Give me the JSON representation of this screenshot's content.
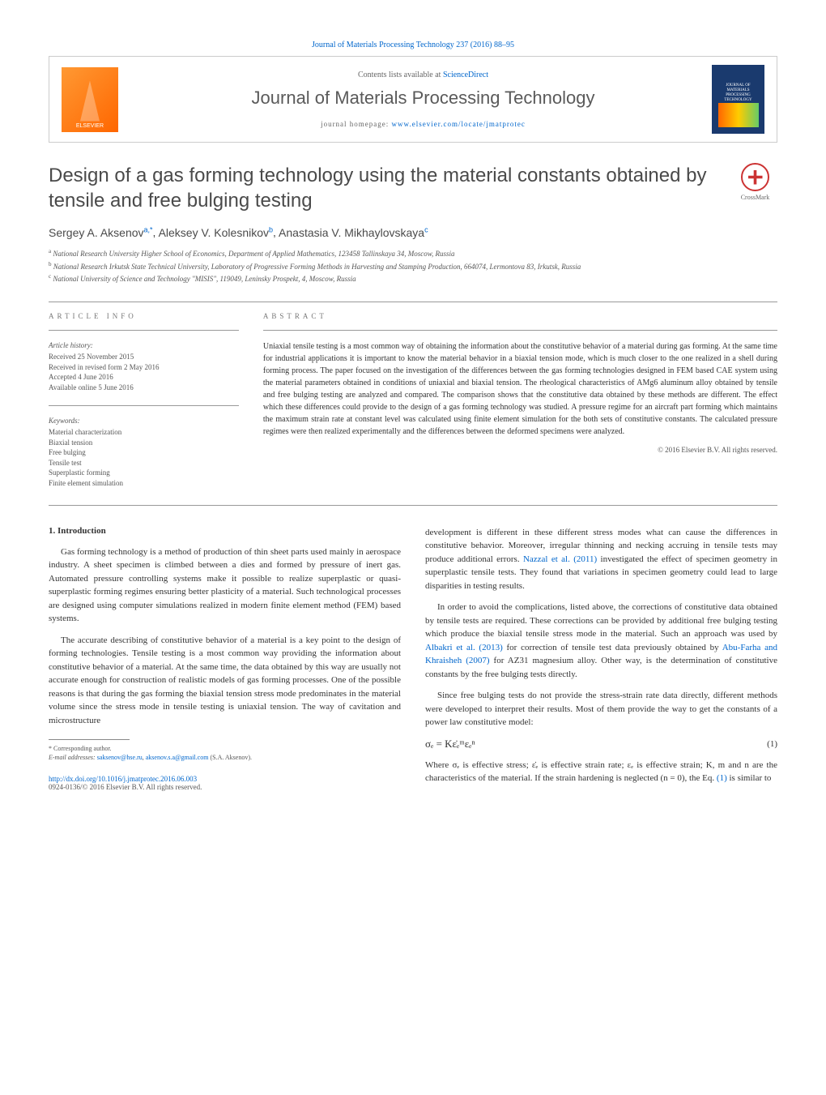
{
  "header": {
    "citation": "Journal of Materials Processing Technology 237 (2016) 88–95",
    "contents_line": "Contents lists available at ",
    "contents_link": "ScienceDirect",
    "journal_name": "Journal of Materials Processing Technology",
    "homepage_label": "journal homepage: ",
    "homepage_url": "www.elsevier.com/locate/jmatprotec",
    "publisher_logo_text": "ELSEVIER",
    "cover_label": "JOURNAL OF MATERIALS PROCESSING TECHNOLOGY"
  },
  "crossmark_label": "CrossMark",
  "title": "Design of a gas forming technology using the material constants obtained by tensile and free bulging testing",
  "authors": [
    {
      "name": "Sergey A. Aksenov",
      "marks": "a,*"
    },
    {
      "name": "Aleksey V. Kolesnikov",
      "marks": "b"
    },
    {
      "name": "Anastasia V. Mikhaylovskaya",
      "marks": "c"
    }
  ],
  "affiliations": [
    {
      "mark": "a",
      "text": "National Research University Higher School of Economics, Department of Applied Mathematics, 123458 Tallinskaya 34, Moscow, Russia"
    },
    {
      "mark": "b",
      "text": "National Research Irkutsk State Technical University, Laboratory of Progressive Forming Methods in Harvesting and Stamping Production, 664074, Lermontova 83, Irkutsk, Russia"
    },
    {
      "mark": "c",
      "text": "National University of Science and Technology \"MISIS\", 119049, Leninsky Prospekt, 4, Moscow, Russia"
    }
  ],
  "article_info": {
    "header": "ARTICLE INFO",
    "history_label": "Article history:",
    "history": [
      "Received 25 November 2015",
      "Received in revised form 2 May 2016",
      "Accepted 4 June 2016",
      "Available online 5 June 2016"
    ],
    "keywords_label": "Keywords:",
    "keywords": [
      "Material characterization",
      "Biaxial tension",
      "Free bulging",
      "Tensile test",
      "Superplastic forming",
      "Finite element simulation"
    ]
  },
  "abstract": {
    "header": "ABSTRACT",
    "text": "Uniaxial tensile testing is a most common way of obtaining the information about the constitutive behavior of a material during gas forming. At the same time for industrial applications it is important to know the material behavior in a biaxial tension mode, which is much closer to the one realized in a shell during forming process. The paper focused on the investigation of the differences between the gas forming technologies designed in FEM based CAE system using the material parameters obtained in conditions of uniaxial and biaxial tension. The rheological characteristics of AMg6 aluminum alloy obtained by tensile and free bulging testing are analyzed and compared. The comparison shows that the constitutive data obtained by these methods are different. The effect which these differences could provide to the design of a gas forming technology was studied. A pressure regime for an aircraft part forming which maintains the maximum strain rate at constant level was calculated using finite element simulation for the both sets of constitutive constants. The calculated pressure regimes were then realized experimentally and the differences between the deformed specimens were analyzed.",
    "copyright": "© 2016 Elsevier B.V. All rights reserved."
  },
  "body": {
    "section1_heading": "1. Introduction",
    "col1_p1": "Gas forming technology is a method of production of thin sheet parts used mainly in aerospace industry. A sheet specimen is climbed between a dies and formed by pressure of inert gas. Automated pressure controlling systems make it possible to realize superplastic or quasi-superplastic forming regimes ensuring better plasticity of a material. Such technological processes are designed using computer simulations realized in modern finite element method (FEM) based systems.",
    "col1_p2": "The accurate describing of constitutive behavior of a material is a key point to the design of forming technologies. Tensile testing is a most common way providing the information about constitutive behavior of a material. At the same time, the data obtained by this way are usually not accurate enough for construction of realistic models of gas forming processes. One of the possible reasons is that during the gas forming the biaxial tension stress mode predominates in the material volume since the stress mode in tensile testing is uniaxial tension. The way of cavitation and microstructure",
    "col2_p1_a": "development is different in these different stress modes what can cause the differences in constitutive behavior. Moreover, irregular thinning and necking accruing in tensile tests may produce additional errors. ",
    "col2_p1_cite": "Nazzal et al. (2011)",
    "col2_p1_b": " investigated the effect of specimen geometry in superplastic tensile tests. They found that variations in specimen geometry could lead to large disparities in testing results.",
    "col2_p2_a": "In order to avoid the complications, listed above, the corrections of constitutive data obtained by tensile tests are required. These corrections can be provided by additional free bulging testing which produce the biaxial tensile stress mode in the material. Such an approach was used by ",
    "col2_p2_cite1": "Albakri et al. (2013)",
    "col2_p2_b": " for correction of tensile test data previously obtained by ",
    "col2_p2_cite2": "Abu-Farha and Khraisheh (2007)",
    "col2_p2_c": " for AZ31 magnesium alloy. Other way, is the determination of constitutive constants by the free bulging tests directly.",
    "col2_p3": "Since free bulging tests do not provide the stress-strain rate data directly, different methods were developed to interpret their results. Most of them provide the way to get the constants of a power law constitutive model:",
    "equation": "σₑ = Kε̇ₑᵐεₑⁿ",
    "equation_num": "(1)",
    "col2_p4_a": "Where σₑ is effective stress; ε̇ₑ is effective strain rate; εₑ is effective strain; K, m and n are the characteristics of the material. If the strain hardening is neglected (n = 0), the Eq. ",
    "col2_p4_cite": "(1)",
    "col2_p4_b": " is similar to"
  },
  "footnote": {
    "corresponding": "* Corresponding author.",
    "email_label": "E-mail addresses: ",
    "email1": "saksenov@hse.ru",
    "email_sep": ", ",
    "email2": "aksenov.s.a@gmail.com",
    "email_name": " (S.A. Aksenov)."
  },
  "doi": {
    "url": "http://dx.doi.org/10.1016/j.jmatprotec.2016.06.003",
    "issn": "0924-0136/© 2016 Elsevier B.V. All rights reserved."
  },
  "colors": {
    "link": "#0066cc",
    "text": "#333333",
    "heading": "#4a4a4a",
    "muted": "#666666",
    "elsevier_orange": "#ff6600",
    "cover_blue": "#1a3a6e",
    "crossmark_red": "#cc3333"
  }
}
